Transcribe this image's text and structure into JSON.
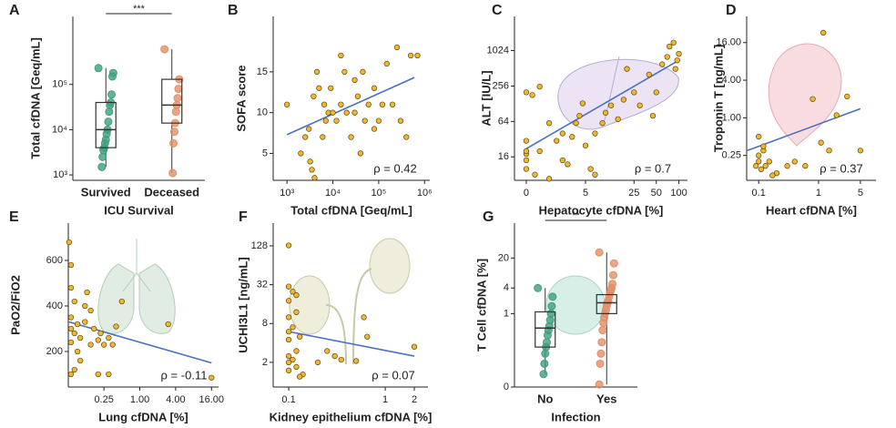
{
  "chart_data": [
    {
      "type": "box",
      "panel": "A",
      "ylabel": "Total cfDNA [Geq/mL]",
      "xlabel": "ICU Survival",
      "categories": [
        "Survived",
        "Deceased"
      ],
      "yscale": "log",
      "ylim": [
        760,
        3200000
      ],
      "yticks": [
        {
          "value": 1000,
          "label": "10³"
        },
        {
          "value": 10000,
          "label": "10⁴"
        },
        {
          "value": 100000,
          "label": "10⁵"
        }
      ],
      "significance": "***",
      "boxes": [
        {
          "color": "#3f9f80",
          "whislo": 1500,
          "q1": 4000,
          "med": 10000,
          "q3": 40000,
          "whishi": 230000,
          "points": [
            230000,
            180000,
            150000,
            60000,
            40000,
            35000,
            25000,
            15000,
            10000,
            8000,
            6000,
            5000,
            4000,
            3500,
            2500,
            1500
          ]
        },
        {
          "color": "#e38e66",
          "whislo": 1100,
          "q1": 14000,
          "med": 35000,
          "q3": 130000,
          "whishi": 600000,
          "points": [
            600000,
            130000,
            80000,
            50000,
            35000,
            25000,
            14000,
            9000,
            5000,
            1100
          ]
        }
      ]
    },
    {
      "type": "scatter",
      "panel": "B",
      "ylabel": "SOFA score",
      "xlabel": "Total cfDNA [Geq/mL]",
      "annotation": "ρ = 0.42",
      "xscale": "log",
      "yscale": "linear",
      "xlim": [
        500,
        1300000
      ],
      "ylim": [
        1.7,
        21.8
      ],
      "xticks": [
        {
          "value": 1000,
          "label": "10³"
        },
        {
          "value": 10000,
          "label": "10⁴"
        },
        {
          "value": 100000,
          "label": "10⁵"
        },
        {
          "value": 1000000,
          "label": "10⁶"
        }
      ],
      "yticks": [
        5,
        10,
        15
      ],
      "color": "#f2b630",
      "x": [
        1000,
        2500,
        3000,
        3200,
        3500,
        4000,
        3800,
        4500,
        5000,
        6000,
        7000,
        8000,
        9000,
        10000,
        12000,
        15000,
        18000,
        20000,
        25000,
        30000,
        35000,
        40000,
        45000,
        50000,
        60000,
        80000,
        100000,
        120000,
        150000,
        200000,
        250000,
        300000,
        400000,
        500000,
        700000,
        80000,
        2000,
        6500,
        15000,
        30000
      ],
      "y": [
        11,
        7,
        8,
        4,
        3,
        2,
        12,
        15,
        13,
        7,
        9,
        10,
        13,
        10,
        9,
        17,
        15,
        10,
        7,
        10,
        12,
        5,
        15,
        9,
        11,
        13,
        9,
        11,
        16,
        11,
        18,
        9,
        7,
        17,
        17,
        8,
        5,
        11,
        11,
        14
      ],
      "fit": {
        "color": "#4a6fc4",
        "x": [
          1000,
          600000
        ],
        "y": [
          7.3,
          14.3
        ]
      }
    },
    {
      "type": "scatter",
      "panel": "C",
      "ylabel": "ALT [IU/L]",
      "xlabel": "Hepatocyte cfDNA [%]",
      "annotation": "ρ = 0.7",
      "xscale": "log1p",
      "yscale": "log",
      "xlim": [
        -0.3,
        130
      ],
      "ylim": [
        6.4,
        3900
      ],
      "xticks": [
        0,
        5,
        25,
        50,
        100
      ],
      "yticks": [
        16,
        64,
        256,
        1024
      ],
      "color": "#f2b630",
      "x": [
        0,
        0,
        0,
        0,
        0,
        0,
        0.2,
        0.5,
        0.3,
        1,
        1.5,
        2,
        2,
        2.5,
        3,
        3.5,
        4,
        4.5,
        5,
        6,
        7,
        7,
        9,
        10,
        12,
        15,
        20,
        25,
        30,
        40,
        50,
        60,
        70,
        75,
        85,
        95,
        100,
        90,
        45,
        18,
        1,
        0.5
      ],
      "y": [
        10,
        14,
        18,
        20,
        30,
        200,
        180,
        20,
        8,
        60,
        30,
        40,
        14,
        12,
        35,
        60,
        80,
        130,
        25,
        10,
        40,
        8,
        60,
        90,
        120,
        70,
        500,
        200,
        120,
        400,
        200,
        600,
        800,
        1200,
        1400,
        700,
        900,
        500,
        80,
        150,
        6.8,
        250
      ],
      "fit": {
        "color": "#4a6fc4",
        "x": [
          0,
          100
        ],
        "y": [
          22,
          700
        ]
      }
    },
    {
      "type": "scatter",
      "panel": "D",
      "ylabel": "Troponin T [ng/mL]",
      "xlabel": "Heart cfDNA [%]",
      "annotation": "ρ = 0.37",
      "xscale": "log",
      "yscale": "log",
      "xlim": [
        0.063,
        9.1
      ],
      "ylim": [
        0.1,
        42
      ],
      "xticks": [
        0.1,
        1,
        5
      ],
      "yticks": [
        0.25,
        {
          "value": 1,
          "label": "1.00"
        },
        {
          "value": 4,
          "label": "4.00"
        },
        {
          "value": 16,
          "label": "16.00"
        }
      ],
      "color": "#f2b630",
      "x": [
        0.1,
        0.1,
        0.09,
        0.11,
        0.1,
        0.12,
        0.13,
        0.15,
        0.2,
        0.3,
        0.4,
        0.6,
        0.8,
        1.1,
        1.2,
        1.5,
        2,
        3,
        5,
        0.12,
        0.17
      ],
      "y": [
        0.5,
        0.2,
        0.17,
        0.15,
        0.25,
        0.3,
        0.17,
        0.2,
        0.13,
        0.17,
        0.2,
        0.17,
        2,
        0.4,
        23,
        0.3,
        1.1,
        2.2,
        0.3,
        0.35,
        0.12
      ],
      "fit": {
        "color": "#4a6fc4",
        "x": [
          0.065,
          5
        ],
        "y": [
          0.3,
          1.4
        ]
      }
    },
    {
      "type": "scatter",
      "panel": "E",
      "ylabel": "PaO2/FiO2",
      "xlabel": "Lung cfDNA [%]",
      "annotation": "ρ = -0.11",
      "xscale": "log",
      "yscale": "linear",
      "xlim": [
        0.063,
        21
      ],
      "ylim": [
        44,
        764
      ],
      "xticks": [
        0.25,
        {
          "value": 1,
          "label": "1.00"
        },
        {
          "value": 4,
          "label": "4.00"
        },
        {
          "value": 16,
          "label": "16.00"
        }
      ],
      "yticks": [
        200,
        400,
        600
      ],
      "color": "#f2b630",
      "x": [
        0.065,
        0.07,
        0.07,
        0.08,
        0.07,
        0.09,
        0.07,
        0.08,
        0.1,
        0.07,
        0.09,
        0.08,
        0.07,
        0.1,
        0.12,
        0.13,
        0.15,
        0.17,
        0.2,
        0.22,
        0.25,
        0.3,
        0.3,
        0.35,
        0.4,
        0.5,
        0.2,
        3,
        16,
        0.15,
        0.12
      ],
      "y": [
        680,
        580,
        480,
        420,
        350,
        320,
        300,
        280,
        260,
        240,
        200,
        120,
        100,
        160,
        330,
        460,
        380,
        300,
        250,
        280,
        230,
        260,
        100,
        230,
        310,
        420,
        100,
        320,
        85,
        230,
        400
      ],
      "fit": {
        "color": "#4a6fc4",
        "x": [
          0.065,
          16
        ],
        "y": [
          330,
          150
        ]
      }
    },
    {
      "type": "scatter",
      "panel": "F",
      "ylabel": "UCHI3L1 [ng/mL]",
      "xlabel": "Kidney epithelium cfDNA [%]",
      "annotation": "ρ = 0.07",
      "xscale": "log",
      "yscale": "log",
      "xlim": [
        0.069,
        2.77
      ],
      "ylim": [
        0.83,
        288
      ],
      "xticks": [
        0.1,
        1,
        2
      ],
      "yticks": [
        2,
        8,
        32,
        128
      ],
      "color": "#f2b630",
      "x": [
        0.1,
        0.1,
        0.11,
        0.1,
        0.12,
        0.1,
        0.11,
        0.13,
        0.1,
        0.12,
        0.1,
        0.11,
        0.1,
        0.12,
        0.1,
        0.14,
        0.2,
        0.25,
        0.3,
        0.35,
        0.5,
        0.6,
        0.65,
        2,
        0.12,
        0.1,
        0.13
      ],
      "y": [
        130,
        30,
        25,
        18,
        12,
        10,
        7,
        5,
        4.5,
        3,
        2.5,
        2.2,
        2,
        1.7,
        1.5,
        1.3,
        2,
        3,
        2.5,
        2.2,
        2.1,
        10,
        5,
        3.5,
        22,
        6,
        1.2
      ],
      "fit": {
        "color": "#4a6fc4",
        "x": [
          0.1,
          2
        ],
        "y": [
          6,
          2.5
        ]
      }
    },
    {
      "type": "box",
      "panel": "G",
      "ylabel": "T Cell cfDNA [%]",
      "xlabel": "Infection",
      "categories": [
        "No",
        "Yes"
      ],
      "yscale": "symlog",
      "ylim": [
        0,
        130
      ],
      "yticks": [
        0,
        1,
        4,
        20
      ],
      "significance": "**",
      "boxes": [
        {
          "color": "#3f9f80",
          "whislo": 0.02,
          "q1": 0.15,
          "med": 0.45,
          "q3": 1.1,
          "whishi": 4,
          "points": [
            4,
            2.5,
            1.5,
            1,
            0.7,
            0.5,
            0.4,
            0.3,
            0.2,
            0.15,
            0.1,
            0.05,
            0.02
          ]
        },
        {
          "color": "#e38e66",
          "whislo": 0.003,
          "q1": 1,
          "med": 1.8,
          "q3": 2.8,
          "whishi": 27,
          "points": [
            27,
            15,
            8,
            5,
            4,
            3.5,
            3,
            2.5,
            2,
            1.8,
            1.5,
            1.2,
            1,
            0.8,
            0.6,
            0.4,
            0.2,
            0.1,
            0.05,
            0.003
          ]
        }
      ]
    }
  ]
}
